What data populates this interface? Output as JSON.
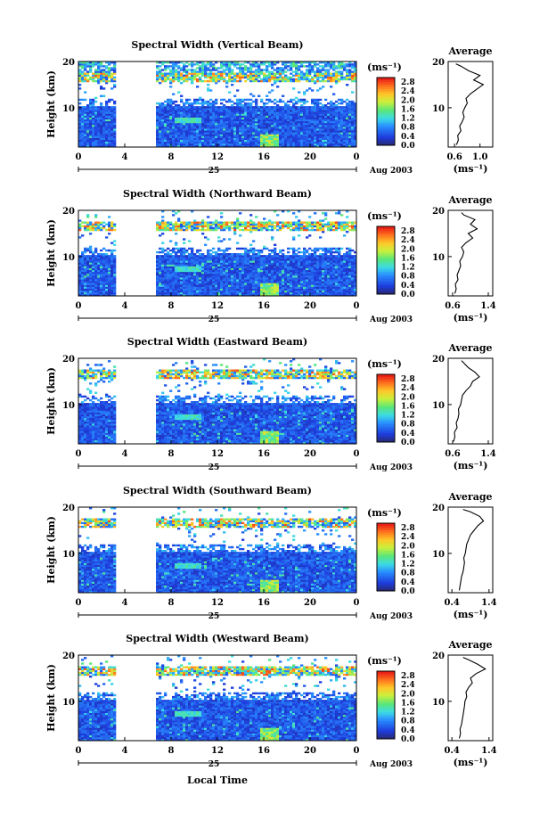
{
  "figure": {
    "xlabel": "Local Time",
    "date_label": "Aug 2003",
    "day_label": "25",
    "unit_label": "(ms⁻¹)"
  },
  "chart_data": [
    {
      "type": "heatmap",
      "title": "Spectral Width (Vertical Beam)",
      "ylabel": "Height (km)",
      "xlabel": "Local Time",
      "x_ticks": [
        "0",
        "4",
        "8",
        "12",
        "16",
        "20",
        "0"
      ],
      "xlim": [
        0,
        24
      ],
      "y_ticks": [
        "10",
        "20"
      ],
      "ylim": [
        1.5,
        20
      ],
      "data_gap_hours": [
        3.2,
        6.6
      ],
      "colorbar": {
        "label": "(ms⁻¹)",
        "ticks": [
          "0.0",
          "0.4",
          "0.8",
          "1.2",
          "1.6",
          "2.0",
          "2.4",
          "2.8"
        ],
        "range": [
          0,
          3.0
        ]
      },
      "average_profile": {
        "title": "Average",
        "xlabel": "(ms⁻¹)",
        "x_ticks": [
          "0.6",
          "1.0"
        ],
        "xlim": [
          0.5,
          1.2
        ],
        "y_ticks": [
          "10",
          "20"
        ],
        "ylim": [
          1.5,
          20
        ],
        "heights_km": [
          2,
          3,
          4,
          5,
          6,
          7,
          8,
          9,
          10,
          11,
          12,
          13,
          14,
          15,
          16,
          17,
          18,
          19,
          19.5
        ],
        "values": [
          0.63,
          0.66,
          0.65,
          0.7,
          0.68,
          0.72,
          0.75,
          0.73,
          0.76,
          0.8,
          0.78,
          0.85,
          0.95,
          1.05,
          0.9,
          1.0,
          0.82,
          0.7,
          0.62
        ]
      }
    },
    {
      "type": "heatmap",
      "title": "Spectral Width (Northward Beam)",
      "ylabel": "Height (km)",
      "xlabel": "Local Time",
      "x_ticks": [
        "0",
        "4",
        "8",
        "12",
        "16",
        "20",
        "0"
      ],
      "xlim": [
        0,
        24
      ],
      "y_ticks": [
        "10",
        "20"
      ],
      "ylim": [
        1.5,
        20
      ],
      "data_gap_hours": [
        3.2,
        6.6
      ],
      "colorbar": {
        "label": "(ms⁻¹)",
        "ticks": [
          "0.0",
          "0.4",
          "0.8",
          "1.2",
          "1.6",
          "2.0",
          "2.4",
          "2.8"
        ],
        "range": [
          0,
          3.0
        ]
      },
      "average_profile": {
        "title": "Average",
        "xlabel": "(ms⁻¹)",
        "x_ticks": [
          "0.6",
          "1.4"
        ],
        "xlim": [
          0.5,
          1.5
        ],
        "y_ticks": [
          "10",
          "20"
        ],
        "ylim": [
          1.5,
          20
        ],
        "heights_km": [
          2,
          3,
          4,
          5,
          6,
          7,
          8,
          9,
          10,
          11,
          12,
          13,
          14,
          15,
          16,
          17,
          18,
          19,
          19.5
        ],
        "values": [
          0.65,
          0.68,
          0.66,
          0.72,
          0.7,
          0.74,
          0.78,
          0.76,
          0.82,
          0.85,
          0.8,
          0.9,
          1.05,
          0.95,
          1.15,
          1.0,
          1.1,
          0.85,
          0.8
        ]
      }
    },
    {
      "type": "heatmap",
      "title": "Spectral Width (Eastward Beam)",
      "ylabel": "Height (km)",
      "xlabel": "Local Time",
      "x_ticks": [
        "0",
        "4",
        "8",
        "12",
        "16",
        "20",
        "0"
      ],
      "xlim": [
        0,
        24
      ],
      "y_ticks": [
        "10",
        "20"
      ],
      "ylim": [
        1.5,
        20
      ],
      "data_gap_hours": [
        3.2,
        6.6
      ],
      "colorbar": {
        "label": "(ms⁻¹)",
        "ticks": [
          "0.0",
          "0.4",
          "0.8",
          "1.2",
          "1.6",
          "2.0",
          "2.4",
          "2.8"
        ],
        "range": [
          0,
          3.0
        ]
      },
      "average_profile": {
        "title": "Average",
        "xlabel": "(ms⁻¹)",
        "x_ticks": [
          "0.6",
          "1.4"
        ],
        "xlim": [
          0.5,
          1.5
        ],
        "y_ticks": [
          "10",
          "20"
        ],
        "ylim": [
          1.5,
          20
        ],
        "heights_km": [
          2,
          3,
          4,
          5,
          6,
          7,
          8,
          9,
          10,
          11,
          12,
          13,
          14,
          15,
          16,
          17,
          18,
          19,
          19.5
        ],
        "values": [
          0.62,
          0.65,
          0.64,
          0.7,
          0.68,
          0.72,
          0.74,
          0.73,
          0.78,
          0.8,
          0.82,
          0.9,
          1.0,
          1.05,
          1.2,
          1.1,
          0.95,
          0.85,
          0.8
        ]
      }
    },
    {
      "type": "heatmap",
      "title": "Spectral Width (Southward Beam)",
      "ylabel": "Height (km)",
      "xlabel": "Local Time",
      "x_ticks": [
        "0",
        "4",
        "8",
        "12",
        "16",
        "20",
        "0"
      ],
      "xlim": [
        0,
        24
      ],
      "y_ticks": [
        "10",
        "20"
      ],
      "ylim": [
        1.5,
        20
      ],
      "data_gap_hours": [
        3.2,
        6.6
      ],
      "colorbar": {
        "label": "(ms⁻¹)",
        "ticks": [
          "0.0",
          "0.4",
          "0.8",
          "1.2",
          "1.6",
          "2.0",
          "2.4",
          "2.8"
        ],
        "range": [
          0,
          3.0
        ]
      },
      "average_profile": {
        "title": "Average",
        "xlabel": "(ms⁻¹)",
        "x_ticks": [
          "0.4",
          "1.4"
        ],
        "xlim": [
          0.3,
          1.5
        ],
        "y_ticks": [
          "10",
          "20"
        ],
        "ylim": [
          1.5,
          20
        ],
        "heights_km": [
          2,
          3,
          4,
          5,
          6,
          7,
          8,
          9,
          10,
          11,
          12,
          13,
          14,
          15,
          16,
          17,
          18,
          19,
          19.5
        ],
        "values": [
          0.6,
          0.62,
          0.64,
          0.66,
          0.7,
          0.72,
          0.74,
          0.72,
          0.76,
          0.78,
          0.8,
          0.85,
          0.9,
          1.0,
          1.1,
          1.25,
          1.15,
          0.9,
          0.7
        ]
      }
    },
    {
      "type": "heatmap",
      "title": "Spectral Width (Westward Beam)",
      "ylabel": "Height (km)",
      "xlabel": "Local Time",
      "x_ticks": [
        "0",
        "4",
        "8",
        "12",
        "16",
        "20",
        "0"
      ],
      "xlim": [
        0,
        24
      ],
      "y_ticks": [
        "10",
        "20"
      ],
      "ylim": [
        1.5,
        20
      ],
      "data_gap_hours": [
        3.2,
        6.6
      ],
      "colorbar": {
        "label": "(ms⁻¹)",
        "ticks": [
          "0.0",
          "0.4",
          "0.8",
          "1.2",
          "1.6",
          "2.0",
          "2.4",
          "2.8"
        ],
        "range": [
          0,
          3.0
        ]
      },
      "average_profile": {
        "title": "Average",
        "xlabel": "(ms⁻¹)",
        "x_ticks": [
          "0.4",
          "1.4"
        ],
        "xlim": [
          0.3,
          1.5
        ],
        "y_ticks": [
          "10",
          "20"
        ],
        "ylim": [
          1.5,
          20
        ],
        "heights_km": [
          2,
          3,
          4,
          5,
          6,
          7,
          8,
          9,
          10,
          11,
          12,
          13,
          14,
          15,
          16,
          17,
          18,
          19,
          19.5
        ],
        "values": [
          0.6,
          0.63,
          0.62,
          0.66,
          0.68,
          0.7,
          0.72,
          0.74,
          0.75,
          0.8,
          0.78,
          0.85,
          0.95,
          0.9,
          1.05,
          1.3,
          1.1,
          0.85,
          0.7
        ]
      }
    }
  ]
}
